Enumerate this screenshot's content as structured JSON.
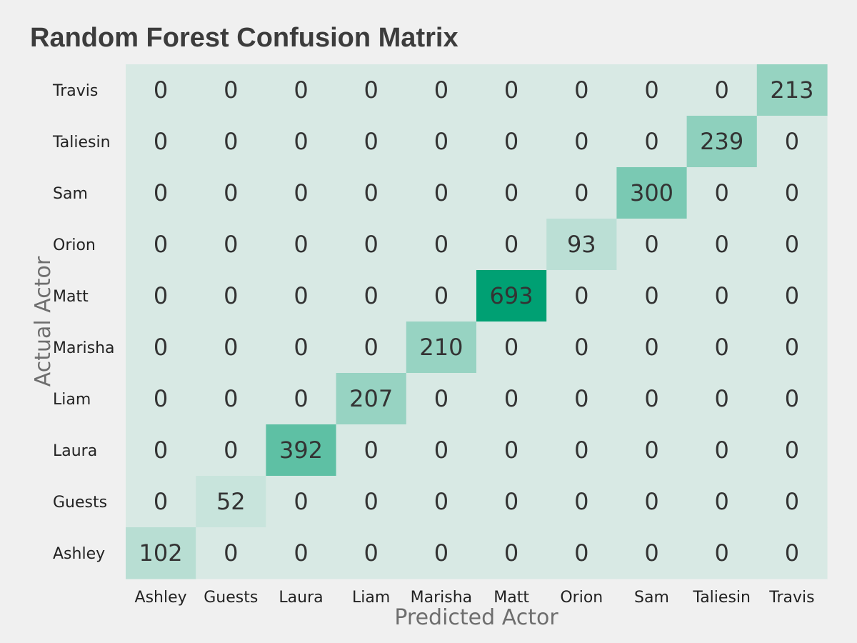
{
  "chart_data": {
    "type": "heatmap",
    "title": "Random Forest Confusion Matrix",
    "xlabel": "Predicted Actor",
    "ylabel": "Actual Actor",
    "x_categories": [
      "Ashley",
      "Guests",
      "Laura",
      "Liam",
      "Marisha",
      "Matt",
      "Orion",
      "Sam",
      "Taliesin",
      "Travis"
    ],
    "y_categories_top_to_bottom": [
      "Travis",
      "Taliesin",
      "Sam",
      "Orion",
      "Matt",
      "Marisha",
      "Liam",
      "Laura",
      "Guests",
      "Ashley"
    ],
    "matrix_rows_top_to_bottom": [
      [
        0,
        0,
        0,
        0,
        0,
        0,
        0,
        0,
        0,
        213
      ],
      [
        0,
        0,
        0,
        0,
        0,
        0,
        0,
        0,
        239,
        0
      ],
      [
        0,
        0,
        0,
        0,
        0,
        0,
        0,
        300,
        0,
        0
      ],
      [
        0,
        0,
        0,
        0,
        0,
        0,
        93,
        0,
        0,
        0
      ],
      [
        0,
        0,
        0,
        0,
        0,
        693,
        0,
        0,
        0,
        0
      ],
      [
        0,
        0,
        0,
        0,
        210,
        0,
        0,
        0,
        0,
        0
      ],
      [
        0,
        0,
        0,
        207,
        0,
        0,
        0,
        0,
        0,
        0
      ],
      [
        0,
        0,
        392,
        0,
        0,
        0,
        0,
        0,
        0,
        0
      ],
      [
        0,
        52,
        0,
        0,
        0,
        0,
        0,
        0,
        0,
        0
      ],
      [
        102,
        0,
        0,
        0,
        0,
        0,
        0,
        0,
        0,
        0
      ]
    ],
    "color_scale": {
      "min_value": 0,
      "max_value": 693,
      "min_color": "#d8e9e4",
      "max_color": "#00a073"
    },
    "background_color": "#f0f0f0",
    "grid": false,
    "colorbar": false
  }
}
